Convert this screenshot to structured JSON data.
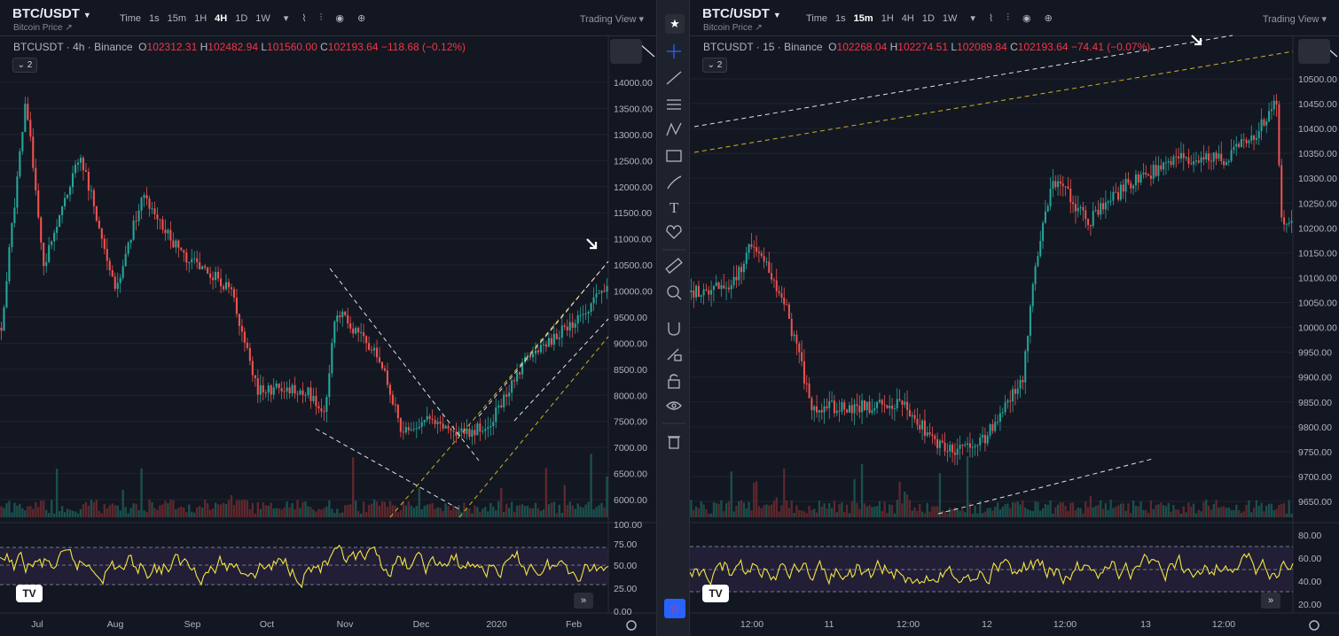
{
  "left_chart": {
    "symbol": "BTC/USDT",
    "subtitle": "Bitcoin Price",
    "timeframes": [
      "Time",
      "1s",
      "15m",
      "1H",
      "4H",
      "1D",
      "1W"
    ],
    "active_timeframe": "4H",
    "trading_view_label": "Trading View",
    "legend": {
      "title": "BTCUSDT · 4h · Binance",
      "o": "102312.31",
      "h": "102482.94",
      "l": "101560.00",
      "c": "102193.64",
      "chg": "−118.68 (−0.12%)"
    },
    "collapse_label": "2",
    "price_axis": [
      "14000.00",
      "13500.00",
      "13000.00",
      "12500.00",
      "12000.00",
      "11500.00",
      "11000.00",
      "10500.00",
      "10000.00",
      "9500.00",
      "9000.00",
      "8500.00",
      "8000.00",
      "7500.00",
      "7000.00",
      "6500.00",
      "6000.00"
    ],
    "rsi_axis": [
      "100.00",
      "75.00",
      "50.00",
      "25.00",
      "0.00"
    ],
    "time_axis": [
      "Jul",
      "Aug",
      "Sep",
      "Oct",
      "Nov",
      "Dec",
      "2020",
      "Feb"
    ],
    "logo": "TV"
  },
  "right_chart": {
    "symbol": "BTC/USDT",
    "subtitle": "Bitcoin Price",
    "timeframes": [
      "Time",
      "1s",
      "15m",
      "1H",
      "4H",
      "1D",
      "1W"
    ],
    "active_timeframe": "15m",
    "trading_view_label": "Trading View",
    "legend": {
      "title": "BTCUSDT · 15 · Binance",
      "o": "102268.04",
      "h": "102274.51",
      "l": "102089.84",
      "c": "102193.64",
      "chg": "−74.41 (−0.07%)"
    },
    "collapse_label": "2",
    "price_axis": [
      "10500.00",
      "10450.00",
      "10400.00",
      "10350.00",
      "10300.00",
      "10250.00",
      "10200.00",
      "10150.00",
      "10100.00",
      "10050.00",
      "10000.00",
      "9950.00",
      "9900.00",
      "9850.00",
      "9800.00",
      "9750.00",
      "9700.00",
      "9650.00"
    ],
    "rsi_axis": [
      "80.00",
      "60.00",
      "40.00",
      "20.00"
    ],
    "time_axis": [
      "12:00",
      "11",
      "12:00",
      "12",
      "12:00",
      "13",
      "12:00"
    ],
    "logo": "TV"
  },
  "toolbar": [
    "crosshair-icon",
    "trend-line-icon",
    "parallel-lines-icon",
    "pattern-icon",
    "measure-icon",
    "brush-icon",
    "text-icon",
    "heart-icon",
    "ruler-icon",
    "zoom-icon",
    "magnet-icon",
    "lock-drawing-icon",
    "lock-icon",
    "eye-icon",
    "trash-icon"
  ],
  "colors": {
    "up": "#26a69a",
    "down": "#ef5350",
    "rsi": "#f5e642",
    "bg": "#131722",
    "accent": "#2962ff"
  }
}
